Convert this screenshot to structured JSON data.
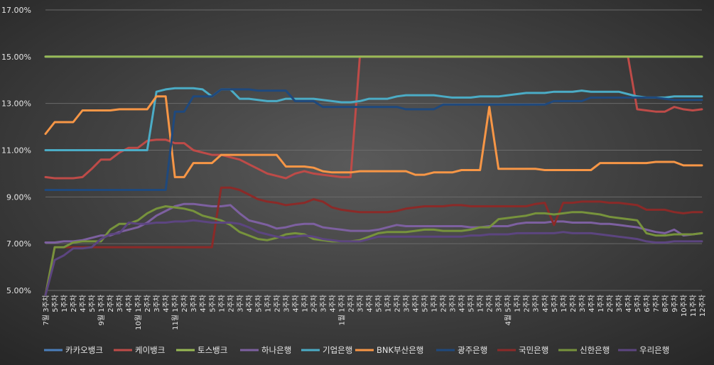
{
  "chart_data": {
    "type": "line",
    "yaxis": {
      "min": 5,
      "max": 17,
      "ticks": [
        5,
        7,
        9,
        11,
        13,
        15,
        17
      ],
      "format": "percent_2dp"
    },
    "grid": true,
    "legend_position": "bottom",
    "x_labels": [
      "7월 3주차",
      "5주차",
      "1주차",
      "2주차",
      "4주차",
      "5주차",
      "9월 1주차",
      "2주차",
      "3주차",
      "4주차",
      "10월 1주차",
      "2주차",
      "3주차",
      "4주차",
      "11월 1주차",
      "2주차",
      "3주차",
      "4주차",
      "5주차",
      "1주차",
      "2주차",
      "3주차",
      "4주차",
      "5주차",
      "1주차",
      "2주차",
      "3주차",
      "4주차",
      "1주차",
      "2주차",
      "3주차",
      "4주차",
      "1월 1주차",
      "2주차",
      "3주차",
      "4주차",
      "5주차",
      "1주차",
      "2주차",
      "3주차",
      "4주차",
      "5주차",
      "1주차",
      "2주차",
      "3주차",
      "4주차",
      "5주차",
      "1주차",
      "2주차",
      "3주차",
      "4월 5주차",
      "1주차",
      "2주차",
      "3주차",
      "4주차",
      "5주차",
      "1주차",
      "2주차",
      "3주차",
      "4주차",
      "1주차",
      "2주차",
      "3주차",
      "4주차",
      "5주차",
      "6주차",
      "7주차",
      "8주차",
      "9주차",
      "10주차",
      "11주차",
      "12주차"
    ],
    "series": [
      {
        "name": "카카오뱅크",
        "color": "#4a7ebb",
        "values": [
          15.0,
          15.0,
          15.0,
          15.0,
          15.0,
          15.0,
          15.0,
          15.0,
          15.0,
          15.0,
          15.0,
          15.0,
          15.0,
          15.0,
          15.0,
          15.0,
          15.0,
          15.0,
          15.0,
          15.0,
          15.0,
          15.0,
          15.0,
          15.0,
          15.0,
          15.0,
          15.0,
          15.0,
          15.0,
          15.0,
          15.0,
          15.0,
          15.0,
          15.0,
          15.0,
          15.0,
          15.0,
          15.0,
          15.0,
          15.0,
          15.0,
          15.0,
          15.0,
          15.0,
          15.0,
          15.0,
          15.0,
          15.0,
          15.0,
          15.0,
          15.0,
          15.0,
          15.0,
          15.0,
          15.0,
          15.0,
          15.0,
          15.0,
          15.0,
          15.0,
          15.0,
          15.0,
          15.0,
          15.0,
          15.0,
          15.0,
          15.0,
          15.0,
          15.0,
          15.0,
          15.0,
          15.0
        ]
      },
      {
        "name": "케이뱅크",
        "color": "#be4b48",
        "values": [
          9.85,
          9.8,
          9.8,
          9.8,
          9.85,
          10.2,
          10.6,
          10.6,
          10.9,
          11.1,
          11.1,
          11.4,
          11.45,
          11.45,
          11.3,
          11.3,
          11.0,
          10.9,
          10.8,
          10.8,
          10.7,
          10.6,
          10.4,
          10.2,
          10.0,
          9.9,
          9.8,
          10.0,
          10.1,
          10.0,
          9.95,
          9.9,
          9.85,
          9.85,
          15.0,
          15.0,
          15.0,
          15.0,
          15.0,
          15.0,
          15.0,
          15.0,
          15.0,
          15.0,
          15.0,
          15.0,
          15.0,
          15.0,
          15.0,
          15.0,
          15.0,
          15.0,
          15.0,
          15.0,
          15.0,
          15.0,
          15.0,
          15.0,
          15.0,
          15.0,
          15.0,
          15.0,
          15.0,
          15.0,
          12.75,
          12.7,
          12.65,
          12.65,
          12.85,
          12.75,
          12.7,
          12.75
        ]
      },
      {
        "name": "토스뱅크",
        "color": "#98b954",
        "values": [
          15.0,
          15.0,
          15.0,
          15.0,
          15.0,
          15.0,
          15.0,
          15.0,
          15.0,
          15.0,
          15.0,
          15.0,
          15.0,
          15.0,
          15.0,
          15.0,
          15.0,
          15.0,
          15.0,
          15.0,
          15.0,
          15.0,
          15.0,
          15.0,
          15.0,
          15.0,
          15.0,
          15.0,
          15.0,
          15.0,
          15.0,
          15.0,
          15.0,
          15.0,
          15.0,
          15.0,
          15.0,
          15.0,
          15.0,
          15.0,
          15.0,
          15.0,
          15.0,
          15.0,
          15.0,
          15.0,
          15.0,
          15.0,
          15.0,
          15.0,
          15.0,
          15.0,
          15.0,
          15.0,
          15.0,
          15.0,
          15.0,
          15.0,
          15.0,
          15.0,
          15.0,
          15.0,
          15.0,
          15.0,
          15.0,
          15.0,
          15.0,
          15.0,
          15.0,
          15.0,
          15.0,
          15.0
        ]
      },
      {
        "name": "하나은행",
        "color": "#7d60a0",
        "values": [
          7.05,
          7.05,
          7.1,
          7.1,
          7.15,
          7.25,
          7.35,
          7.35,
          7.5,
          7.6,
          7.7,
          7.9,
          8.2,
          8.4,
          8.6,
          8.7,
          8.7,
          8.65,
          8.6,
          8.6,
          8.65,
          8.3,
          8.0,
          7.9,
          7.8,
          7.65,
          7.7,
          7.8,
          7.85,
          7.85,
          7.7,
          7.65,
          7.6,
          7.55,
          7.55,
          7.55,
          7.6,
          7.7,
          7.8,
          7.75,
          7.75,
          7.75,
          7.75,
          7.75,
          7.75,
          7.75,
          7.7,
          7.7,
          7.75,
          7.75,
          7.75,
          7.85,
          7.9,
          7.9,
          7.9,
          7.95,
          7.95,
          7.9,
          7.9,
          7.9,
          7.85,
          7.85,
          7.8,
          7.75,
          7.7,
          7.6,
          7.5,
          7.45,
          7.6,
          7.35,
          7.4,
          7.45
        ]
      },
      {
        "name": "기업은행",
        "color": "#4bacc6",
        "values": [
          11.0,
          11.0,
          11.0,
          11.0,
          11.0,
          11.0,
          11.0,
          11.0,
          11.0,
          11.0,
          11.0,
          11.0,
          13.5,
          13.6,
          13.65,
          13.65,
          13.65,
          13.6,
          13.3,
          13.6,
          13.6,
          13.2,
          13.2,
          13.15,
          13.1,
          13.1,
          13.2,
          13.2,
          13.2,
          13.2,
          13.15,
          13.1,
          13.05,
          13.05,
          13.1,
          13.2,
          13.2,
          13.2,
          13.3,
          13.35,
          13.35,
          13.35,
          13.35,
          13.3,
          13.25,
          13.25,
          13.25,
          13.3,
          13.3,
          13.3,
          13.35,
          13.4,
          13.45,
          13.45,
          13.45,
          13.5,
          13.5,
          13.5,
          13.55,
          13.5,
          13.5,
          13.5,
          13.5,
          13.4,
          13.3,
          13.25,
          13.25,
          13.25,
          13.3,
          13.3,
          13.3,
          13.3
        ]
      },
      {
        "name": "BNK부산은행",
        "color": "#f79646",
        "values": [
          11.7,
          12.2,
          12.2,
          12.2,
          12.7,
          12.7,
          12.7,
          12.7,
          12.75,
          12.75,
          12.75,
          12.75,
          13.3,
          13.3,
          9.85,
          9.85,
          10.45,
          10.45,
          10.45,
          10.8,
          10.8,
          10.8,
          10.8,
          10.8,
          10.8,
          10.8,
          10.3,
          10.3,
          10.3,
          10.25,
          10.1,
          10.05,
          10.05,
          10.05,
          10.1,
          10.1,
          10.1,
          10.1,
          10.1,
          10.1,
          9.95,
          9.95,
          10.05,
          10.05,
          10.05,
          10.15,
          10.15,
          10.15,
          12.85,
          10.2,
          10.2,
          10.2,
          10.2,
          10.2,
          10.15,
          10.15,
          10.15,
          10.15,
          10.15,
          10.15,
          10.45,
          10.45,
          10.45,
          10.45,
          10.45,
          10.45,
          10.5,
          10.5,
          10.5,
          10.35,
          10.35,
          10.35
        ]
      },
      {
        "name": "광주은행",
        "color": "#1f497d",
        "values": [
          9.3,
          9.3,
          9.3,
          9.3,
          9.3,
          9.3,
          9.3,
          9.3,
          9.3,
          9.3,
          9.3,
          9.3,
          9.3,
          9.3,
          12.65,
          12.65,
          13.3,
          13.3,
          13.3,
          13.6,
          13.6,
          13.6,
          13.6,
          13.55,
          13.55,
          13.55,
          13.55,
          13.1,
          13.1,
          13.1,
          12.85,
          12.85,
          12.85,
          12.85,
          12.85,
          12.85,
          12.85,
          12.85,
          12.85,
          12.75,
          12.75,
          12.75,
          12.75,
          12.95,
          12.95,
          12.95,
          12.95,
          12.95,
          12.95,
          12.95,
          12.95,
          12.95,
          12.95,
          12.95,
          12.95,
          13.1,
          13.1,
          13.1,
          13.1,
          13.25,
          13.25,
          13.25,
          13.25,
          13.25,
          13.25,
          13.25,
          13.25,
          13.2,
          13.15,
          13.15,
          13.15,
          13.15
        ]
      },
      {
        "name": "국민은행",
        "color": "#8b2a28",
        "values": [
          4.8,
          6.85,
          6.85,
          6.85,
          6.85,
          6.85,
          6.85,
          6.85,
          6.85,
          6.85,
          6.85,
          6.85,
          6.85,
          6.85,
          6.85,
          6.85,
          6.85,
          6.85,
          6.85,
          9.4,
          9.4,
          9.3,
          9.1,
          8.9,
          8.8,
          8.75,
          8.65,
          8.7,
          8.75,
          8.9,
          8.8,
          8.55,
          8.45,
          8.4,
          8.35,
          8.35,
          8.35,
          8.35,
          8.4,
          8.5,
          8.55,
          8.6,
          8.6,
          8.6,
          8.65,
          8.65,
          8.6,
          8.6,
          8.6,
          8.6,
          8.6,
          8.6,
          8.6,
          8.7,
          8.75,
          7.8,
          8.75,
          8.75,
          8.8,
          8.8,
          8.8,
          8.75,
          8.75,
          8.7,
          8.65,
          8.45,
          8.45,
          8.45,
          8.35,
          8.3,
          8.35,
          8.35
        ]
      },
      {
        "name": "신한은행",
        "color": "#77933c",
        "values": [
          4.8,
          6.85,
          6.85,
          7.05,
          7.1,
          7.1,
          7.1,
          7.6,
          7.85,
          7.85,
          8.0,
          8.3,
          8.5,
          8.6,
          8.55,
          8.5,
          8.4,
          8.2,
          8.1,
          8.0,
          7.8,
          7.5,
          7.35,
          7.2,
          7.15,
          7.25,
          7.4,
          7.45,
          7.4,
          7.2,
          7.15,
          7.1,
          7.1,
          7.1,
          7.15,
          7.3,
          7.45,
          7.5,
          7.5,
          7.5,
          7.55,
          7.6,
          7.6,
          7.55,
          7.55,
          7.55,
          7.6,
          7.7,
          7.7,
          8.05,
          8.1,
          8.15,
          8.2,
          8.3,
          8.3,
          8.25,
          8.3,
          8.35,
          8.35,
          8.3,
          8.25,
          8.15,
          8.1,
          8.05,
          8.0,
          7.45,
          7.35,
          7.35,
          7.4,
          7.4,
          7.4,
          7.45
        ]
      },
      {
        "name": "우리은행",
        "color": "#5c4580",
        "values": [
          4.8,
          6.3,
          6.5,
          6.8,
          6.8,
          6.85,
          7.2,
          7.4,
          7.45,
          7.9,
          7.85,
          7.85,
          7.9,
          7.9,
          7.95,
          7.95,
          8.0,
          7.95,
          7.9,
          7.9,
          7.9,
          7.85,
          7.7,
          7.5,
          7.4,
          7.3,
          7.25,
          7.3,
          7.35,
          7.3,
          7.2,
          7.15,
          7.1,
          7.1,
          7.1,
          7.2,
          7.3,
          7.3,
          7.3,
          7.3,
          7.3,
          7.3,
          7.3,
          7.3,
          7.3,
          7.3,
          7.35,
          7.35,
          7.4,
          7.4,
          7.4,
          7.45,
          7.45,
          7.45,
          7.45,
          7.45,
          7.5,
          7.45,
          7.45,
          7.45,
          7.4,
          7.35,
          7.3,
          7.25,
          7.2,
          7.1,
          7.05,
          7.05,
          7.1,
          7.1,
          7.1,
          7.1
        ]
      }
    ]
  }
}
